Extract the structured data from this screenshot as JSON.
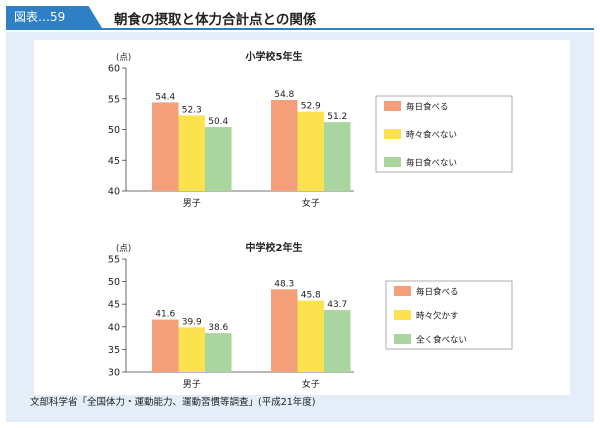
{
  "header": {
    "figure_label": "図表…59",
    "title": "朝食の摂取と体力合計点との関係"
  },
  "source": "文部科学省「全国体力・運動能力、運動習慣等調査」(平成21年度)",
  "colors": {
    "series1": "#f29f7a",
    "series2": "#fde24f",
    "series3": "#a9d59e",
    "header": "#2f7fc6"
  },
  "chart_data": [
    {
      "type": "bar",
      "title": "小学校5年生",
      "ylabel": "(点)",
      "categories": [
        "男子",
        "女子"
      ],
      "ylim": [
        40,
        60
      ],
      "yticks": [
        40,
        45,
        50,
        55,
        60
      ],
      "series": [
        {
          "name": "毎日食べる",
          "values": [
            54.4,
            54.8
          ]
        },
        {
          "name": "時々食べない",
          "values": [
            52.3,
            52.9
          ]
        },
        {
          "name": "毎日食べない",
          "values": [
            50.4,
            51.2
          ]
        }
      ],
      "legend": "right",
      "grid": false
    },
    {
      "type": "bar",
      "title": "中学校2年生",
      "ylabel": "(点)",
      "categories": [
        "男子",
        "女子"
      ],
      "ylim": [
        30,
        55
      ],
      "yticks": [
        30,
        35,
        40,
        45,
        50,
        55
      ],
      "series": [
        {
          "name": "毎日食べる",
          "values": [
            41.6,
            48.3
          ]
        },
        {
          "name": "時々欠かす",
          "values": [
            39.9,
            45.8
          ]
        },
        {
          "name": "全く食べない",
          "values": [
            38.6,
            43.7
          ]
        }
      ],
      "legend": "right",
      "grid": false
    }
  ]
}
